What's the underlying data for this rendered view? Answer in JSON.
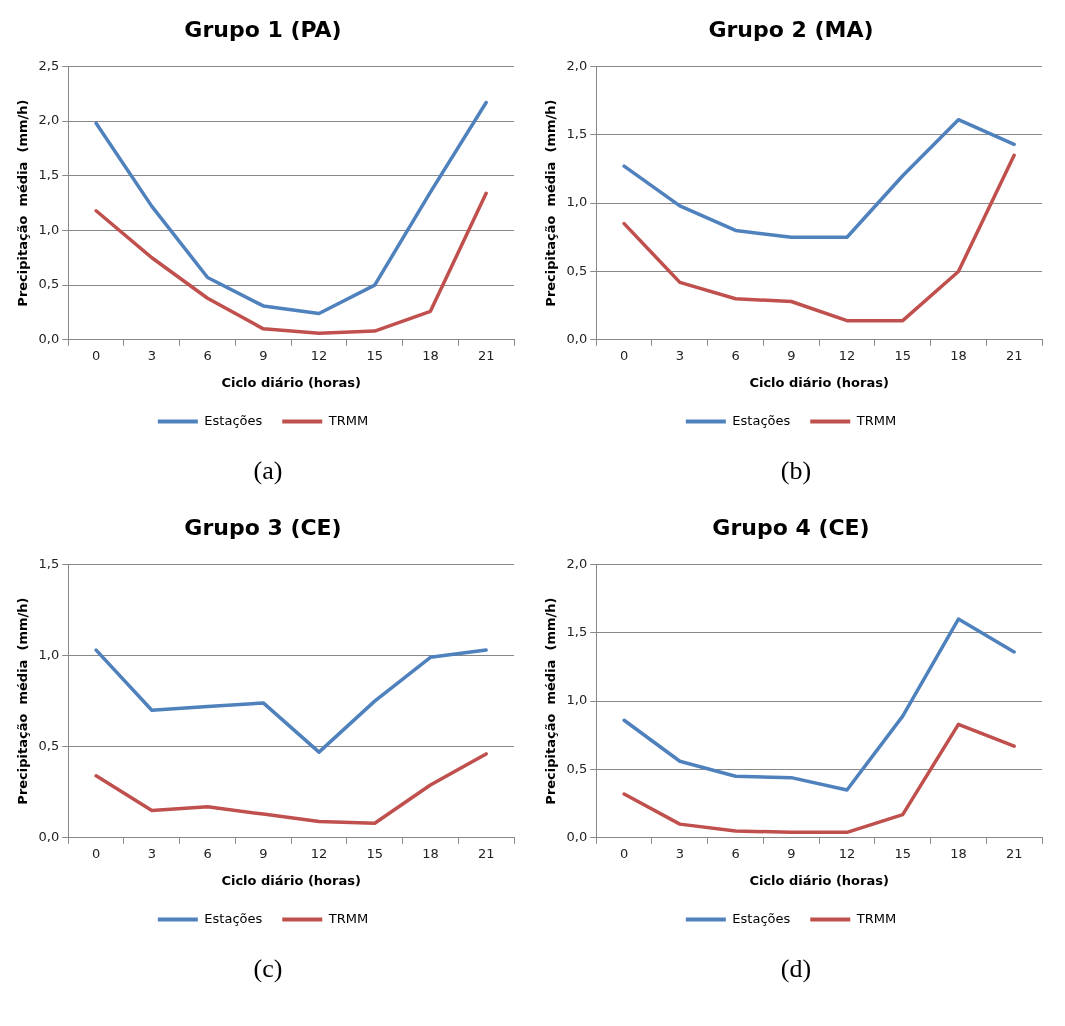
{
  "chart_data": [
    {
      "type": "line",
      "title": "Grupo 1 (PA)",
      "xlabel": "Ciclo diário (horas)",
      "ylabel": "Precipitação  média  (mm/h)",
      "categories": [
        "0",
        "3",
        "6",
        "9",
        "12",
        "15",
        "18",
        "21"
      ],
      "series": [
        {
          "name": "Estações",
          "color": "#4f81bd",
          "values": [
            1.98,
            1.22,
            0.57,
            0.31,
            0.24,
            0.5,
            1.35,
            2.17
          ]
        },
        {
          "name": "TRMM",
          "color": "#c0504d",
          "values": [
            1.18,
            0.75,
            0.38,
            0.1,
            0.06,
            0.08,
            0.26,
            1.34
          ]
        }
      ],
      "ylim": [
        0,
        2.5
      ],
      "yticks": [
        {
          "value": 0,
          "label": "0,0"
        },
        {
          "value": 0.5,
          "label": "0,5"
        },
        {
          "value": 1,
          "label": "1,0"
        },
        {
          "value": 1.5,
          "label": "1,5"
        },
        {
          "value": 2,
          "label": "2,0"
        },
        {
          "value": 2.5,
          "label": "2,5"
        }
      ],
      "grid": "y",
      "legend": "bottom",
      "marker": "none",
      "line_style": "solid",
      "annotations": [
        "(a)"
      ]
    },
    {
      "type": "line",
      "title": "Grupo 2 (MA)",
      "xlabel": "Ciclo diário (horas)",
      "ylabel": "Precipitação  média  (mm/h)",
      "categories": [
        "0",
        "3",
        "6",
        "9",
        "12",
        "15",
        "18",
        "21"
      ],
      "series": [
        {
          "name": "Estações",
          "color": "#4f81bd",
          "values": [
            1.27,
            0.98,
            0.8,
            0.75,
            0.75,
            1.2,
            1.61,
            1.43
          ]
        },
        {
          "name": "TRMM",
          "color": "#c0504d",
          "values": [
            0.85,
            0.42,
            0.3,
            0.28,
            0.14,
            0.14,
            0.5,
            1.35
          ]
        }
      ],
      "ylim": [
        0,
        2
      ],
      "yticks": [
        {
          "value": 0,
          "label": "0,0"
        },
        {
          "value": 0.5,
          "label": "0,5"
        },
        {
          "value": 1,
          "label": "1,0"
        },
        {
          "value": 1.5,
          "label": "1,5"
        },
        {
          "value": 2,
          "label": "2,0"
        }
      ],
      "grid": "y",
      "legend": "bottom",
      "marker": "none",
      "line_style": "solid",
      "annotations": [
        "(b)"
      ]
    },
    {
      "type": "line",
      "title": "Grupo 3 (CE)",
      "xlabel": "Ciclo diário (horas)",
      "ylabel": "Precipitação  média  (mm/h)",
      "categories": [
        "0",
        "3",
        "6",
        "9",
        "12",
        "15",
        "18",
        "21"
      ],
      "series": [
        {
          "name": "Estações",
          "color": "#4f81bd",
          "values": [
            1.03,
            0.7,
            0.72,
            0.74,
            0.47,
            0.75,
            0.99,
            1.03
          ]
        },
        {
          "name": "TRMM",
          "color": "#c0504d",
          "values": [
            0.34,
            0.15,
            0.17,
            0.13,
            0.09,
            0.08,
            0.29,
            0.46
          ]
        }
      ],
      "ylim": [
        0,
        1.5
      ],
      "yticks": [
        {
          "value": 0,
          "label": "0,0"
        },
        {
          "value": 0.5,
          "label": "0,5"
        },
        {
          "value": 1,
          "label": "1,0"
        },
        {
          "value": 1.5,
          "label": "1,5"
        }
      ],
      "grid": "y",
      "legend": "bottom",
      "marker": "none",
      "line_style": "solid",
      "annotations": [
        "(c)"
      ]
    },
    {
      "type": "line",
      "title": "Grupo 4 (CE)",
      "xlabel": "Ciclo diário (horas)",
      "ylabel": "Precipitação  média  (mm/h)",
      "categories": [
        "0",
        "3",
        "6",
        "9",
        "12",
        "15",
        "18",
        "21"
      ],
      "series": [
        {
          "name": "Estações",
          "color": "#4f81bd",
          "values": [
            0.86,
            0.56,
            0.45,
            0.44,
            0.35,
            0.89,
            1.6,
            1.36
          ]
        },
        {
          "name": "TRMM",
          "color": "#c0504d",
          "values": [
            0.32,
            0.1,
            0.05,
            0.04,
            0.04,
            0.17,
            0.83,
            0.67
          ]
        }
      ],
      "ylim": [
        0,
        2
      ],
      "yticks": [
        {
          "value": 0,
          "label": "0,0"
        },
        {
          "value": 0.5,
          "label": "0,5"
        },
        {
          "value": 1,
          "label": "1,0"
        },
        {
          "value": 1.5,
          "label": "1,5"
        },
        {
          "value": 2,
          "label": "2,0"
        }
      ],
      "grid": "y",
      "legend": "bottom",
      "marker": "none",
      "line_style": "solid",
      "annotations": [
        "(d)"
      ]
    }
  ]
}
